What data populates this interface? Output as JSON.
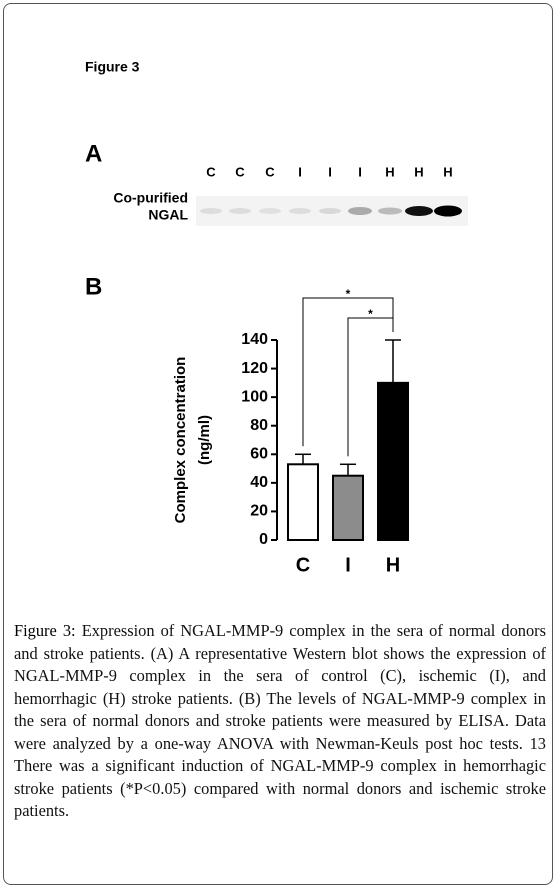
{
  "figure_label": "Figure 3",
  "panel_a": {
    "label": "A",
    "lanes": [
      "C",
      "C",
      "C",
      "I",
      "I",
      "I",
      "H",
      "H",
      "H"
    ],
    "row_label": [
      "Co-purified",
      "NGAL"
    ]
  },
  "panel_b_label": "B",
  "chart_data": {
    "type": "bar",
    "y_label": [
      "Complex concentration",
      "(ng/ml)"
    ],
    "categories": [
      "C",
      "I",
      "H"
    ],
    "values": [
      53,
      45,
      110
    ],
    "errors": [
      7,
      8,
      30
    ],
    "colors": [
      "#ffffff",
      "#8c8c8c",
      "#000000"
    ],
    "ylim": [
      0,
      140
    ],
    "yticks": [
      0,
      20,
      40,
      60,
      80,
      100,
      120,
      140
    ],
    "significance": [
      {
        "from": 0,
        "to": 2,
        "label": "*"
      },
      {
        "from": 1,
        "to": 2,
        "label": "*"
      }
    ]
  },
  "caption": {
    "label": "Figure 3:",
    "text": "Expression of NGAL-MMP-9 complex in the sera of normal donors and stroke patients. (A) A representative Western blot shows the expression of NGAL-MMP-9 complex in the sera of control (C), ischemic (I), and hemorrhagic (H) stroke patients. (B) The levels of NGAL-MMP-9 complex in the sera of normal donors and stroke patients were measured by ELISA. Data were analyzed by a one-way ANOVA with Newman-Keuls post hoc tests. 13 There was a significant induction of NGAL-MMP-9 complex in hemorrhagic stroke patients (*P<0.05) compared with normal donors and ischemic stroke patients."
  }
}
